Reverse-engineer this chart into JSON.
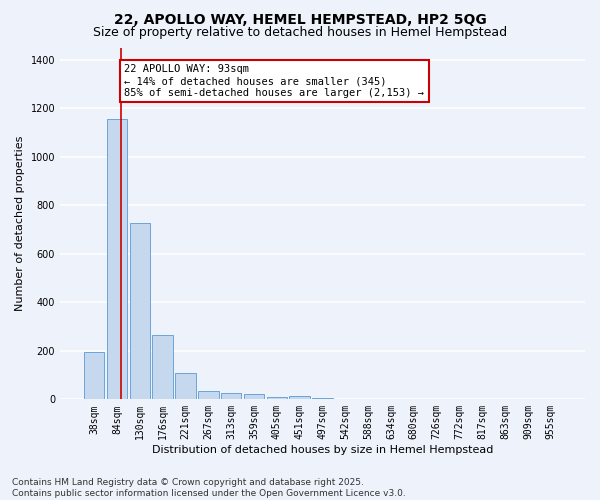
{
  "title": "22, APOLLO WAY, HEMEL HEMPSTEAD, HP2 5QG",
  "subtitle": "Size of property relative to detached houses in Hemel Hempstead",
  "xlabel": "Distribution of detached houses by size in Hemel Hempstead",
  "ylabel": "Number of detached properties",
  "footer_line1": "Contains HM Land Registry data © Crown copyright and database right 2025.",
  "footer_line2": "Contains public sector information licensed under the Open Government Licence v3.0.",
  "categories": [
    "38sqm",
    "84sqm",
    "130sqm",
    "176sqm",
    "221sqm",
    "267sqm",
    "313sqm",
    "359sqm",
    "405sqm",
    "451sqm",
    "497sqm",
    "542sqm",
    "588sqm",
    "634sqm",
    "680sqm",
    "726sqm",
    "772sqm",
    "817sqm",
    "863sqm",
    "909sqm",
    "955sqm"
  ],
  "values": [
    195,
    1155,
    725,
    265,
    108,
    35,
    28,
    22,
    9,
    13,
    5,
    0,
    0,
    0,
    0,
    0,
    0,
    0,
    0,
    0,
    0
  ],
  "bar_color": "#c5d8ed",
  "bar_edge_color": "#5b9bd5",
  "property_line_label": "22 APOLLO WAY: 93sqm",
  "annotation_line1": "← 14% of detached houses are smaller (345)",
  "annotation_line2": "85% of semi-detached houses are larger (2,153) →",
  "annotation_box_color": "#ffffff",
  "annotation_box_edge": "#cc0000",
  "vline_color": "#cc0000",
  "ylim": [
    0,
    1450
  ],
  "yticks": [
    0,
    200,
    400,
    600,
    800,
    1000,
    1200,
    1400
  ],
  "background_color": "#eef2fb",
  "grid_color": "#ffffff",
  "title_fontsize": 10,
  "subtitle_fontsize": 9,
  "axis_label_fontsize": 8,
  "tick_fontsize": 7,
  "annotation_fontsize": 7.5,
  "footer_fontsize": 6.5
}
